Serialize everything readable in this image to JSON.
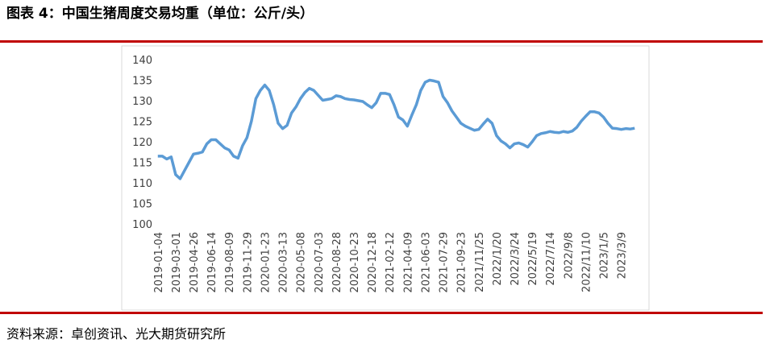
{
  "chart_data": {
    "type": "line",
    "title": "图表 4：中国生猪周度交易均重（单位：公斤/头）",
    "source": "资料来源：卓创资讯、光大期货研究所",
    "color": "#5b9bd5",
    "grid": false,
    "ylim": [
      100,
      140
    ],
    "yticks": [
      100,
      105,
      110,
      115,
      120,
      125,
      130,
      135,
      140
    ],
    "categories": [
      "2019-01-04",
      null,
      null,
      null,
      "2019-03-01",
      null,
      null,
      null,
      "2019-04-26",
      null,
      null,
      null,
      "2019-06-14",
      null,
      null,
      null,
      "2019-08-09",
      null,
      null,
      null,
      "2019-11-29",
      null,
      null,
      null,
      "2020-01-23",
      null,
      null,
      null,
      "2020-03-13",
      null,
      null,
      null,
      "2020-05-08",
      null,
      null,
      null,
      "2020-07-03",
      null,
      null,
      null,
      "2020-08-28",
      null,
      null,
      null,
      "2020-10-23",
      null,
      null,
      null,
      "2020-12-18",
      null,
      null,
      null,
      "2021-02-12",
      null,
      null,
      null,
      "2021-04-09",
      null,
      null,
      null,
      "2021-06-03",
      null,
      null,
      null,
      "2021-07-29",
      null,
      null,
      null,
      "2021-09-23",
      null,
      null,
      null,
      "2021/11/25",
      null,
      null,
      null,
      "2022/1/20",
      null,
      null,
      null,
      "2022/3/24",
      null,
      null,
      null,
      "2022/5/19",
      null,
      null,
      null,
      "2022/7/14",
      null,
      null,
      null,
      "2022/9/8",
      null,
      null,
      null,
      "2022/11/10",
      null,
      null,
      null,
      "2023/1/5",
      null,
      null,
      null,
      "2023/3/9",
      null,
      null,
      null
    ],
    "values": [
      116.5,
      116.5,
      115.8,
      116.3,
      112,
      111,
      113,
      115,
      117,
      117.2,
      117.5,
      119.5,
      120.5,
      120.5,
      119.5,
      118.5,
      118,
      116.5,
      116,
      119,
      121,
      125,
      130.5,
      132.5,
      133.8,
      132.5,
      129,
      124.5,
      123.2,
      124,
      127,
      128.5,
      130.5,
      132,
      133,
      132.5,
      131.3,
      130.1,
      130.3,
      130.5,
      131.2,
      131,
      130.5,
      130.3,
      130.2,
      130,
      129.8,
      129,
      128.3,
      129.5,
      131.8,
      131.8,
      131.5,
      129,
      126,
      125.3,
      123.8,
      126.5,
      129,
      132.5,
      134.5,
      135,
      134.8,
      134.5,
      131,
      129.5,
      127.5,
      126,
      124.5,
      123.8,
      123.3,
      122.8,
      123,
      124.3,
      125.5,
      124.5,
      121.5,
      120.2,
      119.5,
      118.5,
      119.5,
      119.7,
      119.3,
      118.7,
      120,
      121.5,
      122,
      122.2,
      122.5,
      122.3,
      122.2,
      122.5,
      122.3,
      122.6,
      123.5,
      125,
      126.2,
      127.3,
      127.3,
      127,
      126,
      124.5,
      123.3,
      123.2,
      123,
      123.2,
      123.1,
      123.3
    ]
  }
}
